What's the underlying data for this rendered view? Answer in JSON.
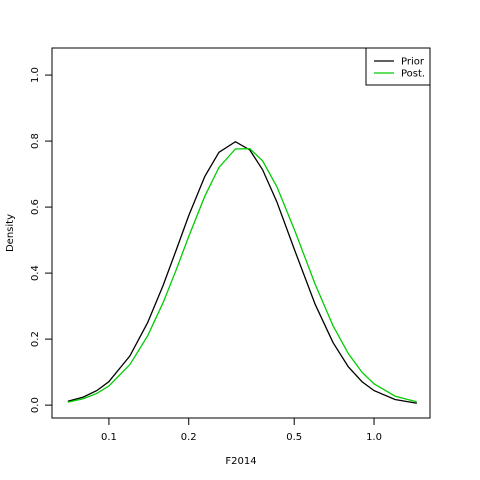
{
  "chart_data": {
    "type": "line",
    "x_label": "F2014",
    "y_label": "Density",
    "x": [
      0.07,
      0.08,
      0.09,
      0.1,
      0.12,
      0.14,
      0.16,
      0.18,
      0.2,
      0.23,
      0.26,
      0.3,
      0.34,
      0.38,
      0.43,
      0.5,
      0.6,
      0.7,
      0.8,
      0.9,
      1.0,
      1.2,
      1.45
    ],
    "series": [
      {
        "name": "Prior",
        "color": "#000000",
        "values": [
          0.0116,
          0.0242,
          0.044,
          0.0713,
          0.149,
          0.25,
          0.362,
          0.473,
          0.574,
          0.693,
          0.766,
          0.798,
          0.773,
          0.713,
          0.616,
          0.473,
          0.305,
          0.19,
          0.116,
          0.0713,
          0.044,
          0.0171,
          0.0056
        ]
      },
      {
        "name": "Post.",
        "color": "#00cd00",
        "values": [
          0.0092,
          0.0193,
          0.0354,
          0.0579,
          0.123,
          0.21,
          0.31,
          0.413,
          0.511,
          0.633,
          0.72,
          0.776,
          0.777,
          0.74,
          0.662,
          0.533,
          0.366,
          0.241,
          0.156,
          0.1,
          0.0646,
          0.0273,
          0.0097
        ]
      }
    ],
    "x_log": true,
    "xlim": [
      0.061,
      1.626
    ],
    "ylim": [
      -0.039,
      1.082
    ],
    "xticks": [
      0.1,
      0.2,
      0.5,
      {
        "value": 1,
        "label": "1.0"
      }
    ],
    "yticks": [
      {
        "value": 0,
        "label": "0.0"
      },
      0.2,
      0.4,
      0.6,
      0.8,
      {
        "value": 1,
        "label": "1.0"
      }
    ],
    "legend": "top-right"
  }
}
